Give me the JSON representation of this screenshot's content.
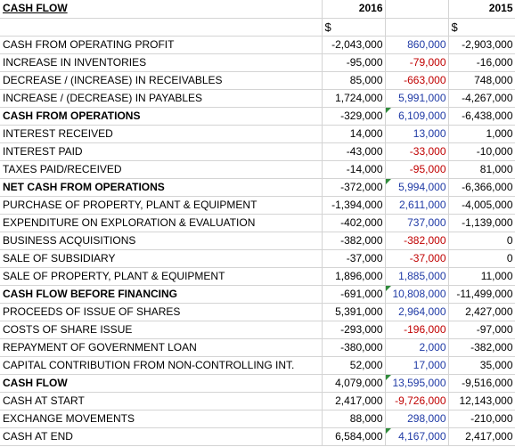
{
  "header": {
    "title": "CASH FLOW",
    "year_2016": "2016",
    "year_2015": "2015",
    "currency_2016": "$",
    "currency_2015": "$"
  },
  "rows": [
    {
      "label": "CASH FROM OPERATING PROFIT",
      "v2016": "-2,043,000",
      "mid": "860,000",
      "v2015": "-2,903,000",
      "bold": false,
      "mid_color": "pos",
      "flag": false
    },
    {
      "label": "INCREASE IN INVENTORIES",
      "v2016": "-95,000",
      "mid": "-79,000",
      "v2015": "-16,000",
      "bold": false,
      "mid_color": "neg",
      "flag": false
    },
    {
      "label": "DECREASE / (INCREASE) IN RECEIVABLES",
      "v2016": "85,000",
      "mid": "-663,000",
      "v2015": "748,000",
      "bold": false,
      "mid_color": "neg",
      "flag": false
    },
    {
      "label": "INCREASE / (DECREASE) IN PAYABLES",
      "v2016": "1,724,000",
      "mid": "5,991,000",
      "v2015": "-4,267,000",
      "bold": false,
      "mid_color": "pos",
      "flag": false
    },
    {
      "label": "CASH FROM OPERATIONS",
      "v2016": "-329,000",
      "mid": "6,109,000",
      "v2015": "-6,438,000",
      "bold": true,
      "mid_color": "pos",
      "flag": true
    },
    {
      "label": "INTEREST RECEIVED",
      "v2016": "14,000",
      "mid": "13,000",
      "v2015": "1,000",
      "bold": false,
      "mid_color": "pos",
      "flag": false
    },
    {
      "label": "INTEREST PAID",
      "v2016": "-43,000",
      "mid": "-33,000",
      "v2015": "-10,000",
      "bold": false,
      "mid_color": "neg",
      "flag": false
    },
    {
      "label": "TAXES PAID/RECEIVED",
      "v2016": "-14,000",
      "mid": "-95,000",
      "v2015": "81,000",
      "bold": false,
      "mid_color": "neg",
      "flag": false
    },
    {
      "label": "NET CASH FROM OPERATIONS",
      "v2016": "-372,000",
      "mid": "5,994,000",
      "v2015": "-6,366,000",
      "bold": true,
      "mid_color": "pos",
      "flag": true
    },
    {
      "label": "PURCHASE OF PROPERTY, PLANT & EQUIPMENT",
      "v2016": "-1,394,000",
      "mid": "2,611,000",
      "v2015": "-4,005,000",
      "bold": false,
      "mid_color": "pos",
      "flag": false
    },
    {
      "label": "EXPENDITURE ON EXPLORATION & EVALUATION",
      "v2016": "-402,000",
      "mid": "737,000",
      "v2015": "-1,139,000",
      "bold": false,
      "mid_color": "pos",
      "flag": false
    },
    {
      "label": "BUSINESS ACQUISITIONS",
      "v2016": "-382,000",
      "mid": "-382,000",
      "v2015": "0",
      "bold": false,
      "mid_color": "neg",
      "flag": false
    },
    {
      "label": "SALE OF SUBSIDIARY",
      "v2016": "-37,000",
      "mid": "-37,000",
      "v2015": "0",
      "bold": false,
      "mid_color": "neg",
      "flag": false
    },
    {
      "label": "SALE OF PROPERTY, PLANT & EQUIPMENT",
      "v2016": "1,896,000",
      "mid": "1,885,000",
      "v2015": "11,000",
      "bold": false,
      "mid_color": "pos",
      "flag": false
    },
    {
      "label": "CASH FLOW BEFORE FINANCING",
      "v2016": "-691,000",
      "mid": "10,808,000",
      "v2015": "-11,499,000",
      "bold": true,
      "mid_color": "pos",
      "flag": true
    },
    {
      "label": "PROCEEDS OF ISSUE OF SHARES",
      "v2016": "5,391,000",
      "mid": "2,964,000",
      "v2015": "2,427,000",
      "bold": false,
      "mid_color": "pos",
      "flag": false
    },
    {
      "label": "COSTS OF SHARE ISSUE",
      "v2016": "-293,000",
      "mid": "-196,000",
      "v2015": "-97,000",
      "bold": false,
      "mid_color": "neg",
      "flag": false
    },
    {
      "label": "REPAYMENT OF GOVERNMENT LOAN",
      "v2016": "-380,000",
      "mid": "2,000",
      "v2015": "-382,000",
      "bold": false,
      "mid_color": "pos",
      "flag": false
    },
    {
      "label": "CAPITAL CONTRIBUTION FROM NON-CONTROLLING INT.",
      "v2016": "52,000",
      "mid": "17,000",
      "v2015": "35,000",
      "bold": false,
      "mid_color": "pos",
      "flag": false
    },
    {
      "label": "CASH FLOW",
      "v2016": "4,079,000",
      "mid": "13,595,000",
      "v2015": "-9,516,000",
      "bold": true,
      "mid_color": "pos",
      "flag": true
    },
    {
      "label": "CASH AT START",
      "v2016": "2,417,000",
      "mid": "-9,726,000",
      "v2015": "12,143,000",
      "bold": false,
      "mid_color": "neg",
      "flag": false
    },
    {
      "label": "EXCHANGE MOVEMENTS",
      "v2016": "88,000",
      "mid": "298,000",
      "v2015": "-210,000",
      "bold": false,
      "mid_color": "pos",
      "flag": false
    },
    {
      "label": "CASH AT END",
      "v2016": "6,584,000",
      "mid": "4,167,000",
      "v2015": "2,417,000",
      "bold": false,
      "mid_color": "pos",
      "flag": true
    }
  ],
  "colors": {
    "negative_diff": "#c00000",
    "positive_diff": "#1f3aa5",
    "error_flag": "#2e8b3a",
    "gridline": "#d4d4d4"
  }
}
